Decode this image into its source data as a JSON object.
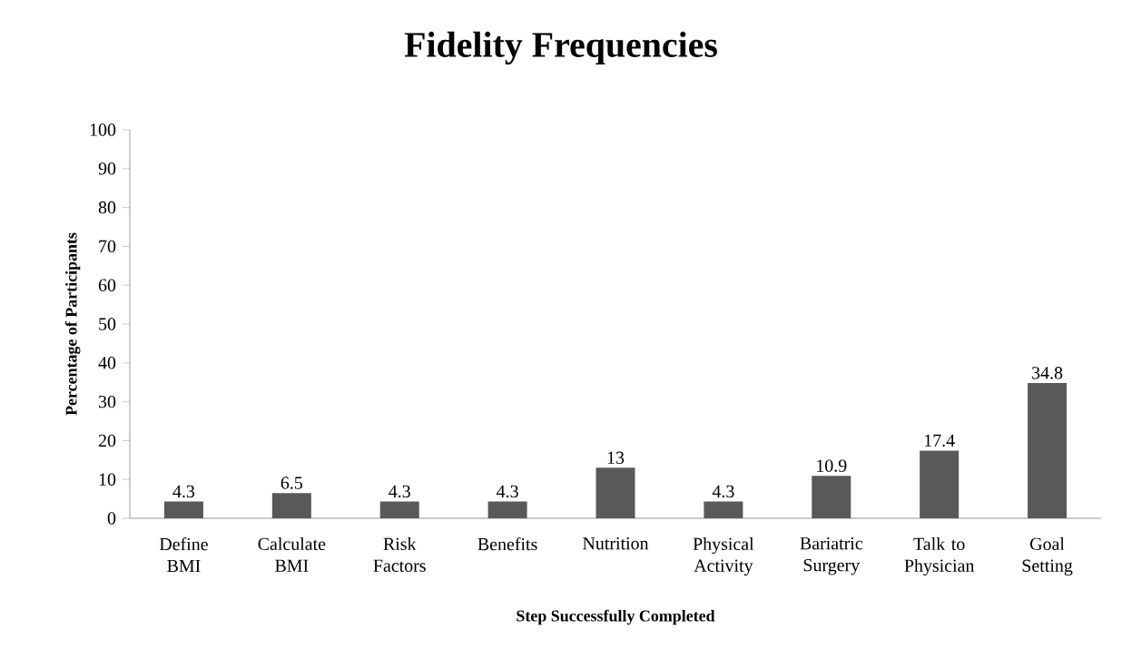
{
  "chart_data": {
    "type": "bar",
    "title": "Fidelity Frequencies",
    "xlabel": "Step Successfully Completed",
    "ylabel": "Percentage of Participants",
    "categories": [
      "Define BMI",
      "Calculate BMI",
      "Risk Factors",
      "Benefits",
      "Nutrition",
      "Physical Activity",
      "Bariatric Surgery",
      "Talk to Physician",
      "Goal Setting"
    ],
    "values": [
      4.3,
      6.5,
      4.3,
      4.3,
      13,
      4.3,
      10.9,
      17.4,
      34.8
    ],
    "color": "#595959",
    "ylim": [
      0,
      100
    ],
    "yticks": [
      0,
      10,
      20,
      30,
      40,
      50,
      60,
      70,
      80,
      90,
      100
    ],
    "data_labels": true
  }
}
